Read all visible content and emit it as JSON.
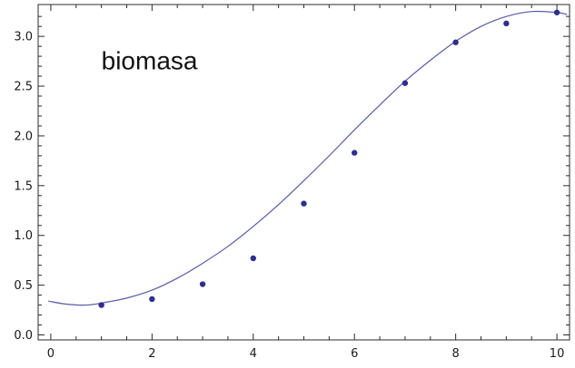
{
  "chart_data": {
    "type": "scatter",
    "title": "",
    "xlabel": "",
    "ylabel": "",
    "xlim": [
      -0.25,
      10.25
    ],
    "ylim": [
      -0.05,
      3.32
    ],
    "x_ticks": [
      "0",
      "2",
      "4",
      "6",
      "8",
      "10"
    ],
    "y_ticks": [
      "0.0",
      "0.5",
      "1.0",
      "1.5",
      "2.0",
      "2.5",
      "3.0"
    ],
    "annotation": "biomasa",
    "grid": false,
    "series": [
      {
        "kind": "points",
        "x": [
          1,
          2,
          3,
          4,
          5,
          6,
          7,
          8,
          9,
          10
        ],
        "y": [
          0.3,
          0.36,
          0.51,
          0.77,
          1.32,
          1.83,
          2.53,
          2.94,
          3.13,
          3.24
        ]
      },
      {
        "kind": "fitted-curve",
        "x": [
          -0.05,
          0.3,
          0.7,
          1.0,
          1.5,
          2.0,
          2.5,
          3.0,
          3.5,
          4.0,
          4.5,
          5.0,
          5.5,
          6.0,
          6.5,
          7.0,
          7.5,
          8.0,
          8.5,
          9.0,
          9.5,
          10.0,
          10.2
        ],
        "y": [
          0.34,
          0.31,
          0.3,
          0.32,
          0.37,
          0.45,
          0.57,
          0.72,
          0.89,
          1.09,
          1.31,
          1.55,
          1.8,
          2.06,
          2.31,
          2.55,
          2.76,
          2.95,
          3.1,
          3.2,
          3.25,
          3.24,
          3.22
        ]
      }
    ],
    "colors": {
      "points": "#2e2e8f",
      "curve": "#5a5aa8",
      "frame": "#2b2b2b"
    }
  }
}
